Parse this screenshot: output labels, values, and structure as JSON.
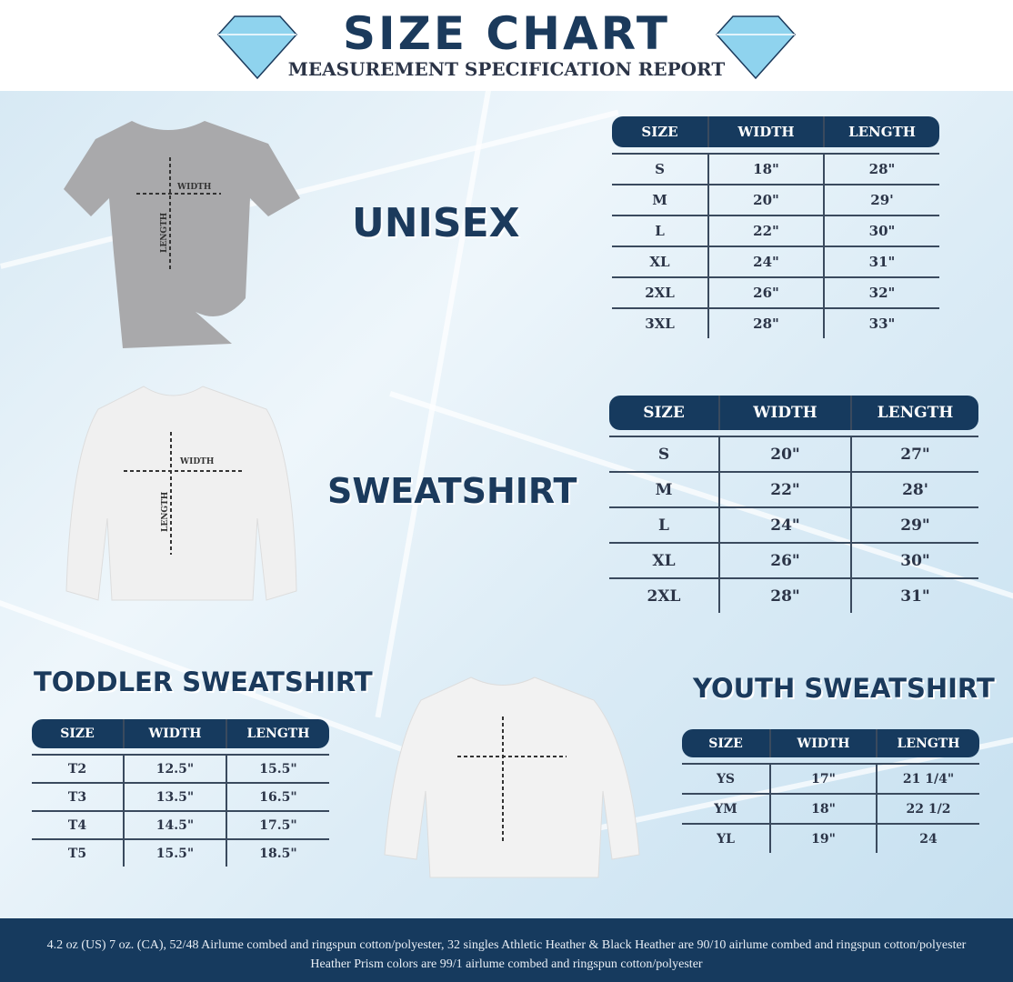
{
  "header": {
    "title": "SIZE CHART",
    "subtitle": "MEASUREMENT SPECIFICATION REPORT"
  },
  "colors": {
    "navy": "#163a5e",
    "diamond": "#8fd3ee",
    "background": "#dcecf6"
  },
  "icons": {
    "left": "diamond-icon",
    "right": "diamond-icon"
  },
  "shirt_labels": {
    "width": "WIDTH",
    "length": "LENGTH"
  },
  "sections": {
    "unisex": {
      "title": "UNISEX",
      "columns": [
        "SIZE",
        "WIDTH",
        "LENGTH"
      ],
      "rows": [
        [
          "S",
          "18\"",
          "28\""
        ],
        [
          "M",
          "20\"",
          "29'"
        ],
        [
          "L",
          "22\"",
          "30\""
        ],
        [
          "XL",
          "24\"",
          "31\""
        ],
        [
          "2XL",
          "26\"",
          "32\""
        ],
        [
          "3XL",
          "28\"",
          "33\""
        ]
      ]
    },
    "sweatshirt": {
      "title": "SWEATSHIRT",
      "columns": [
        "SIZE",
        "WIDTH",
        "LENGTH"
      ],
      "rows": [
        [
          "S",
          "20\"",
          "27\""
        ],
        [
          "M",
          "22\"",
          "28'"
        ],
        [
          "L",
          "24\"",
          "29\""
        ],
        [
          "XL",
          "26\"",
          "30\""
        ],
        [
          "2XL",
          "28\"",
          "31\""
        ]
      ]
    },
    "toddler": {
      "title": "TODDLER SWEATSHIRT",
      "columns": [
        "SIZE",
        "WIDTH",
        "LENGTH"
      ],
      "rows": [
        [
          "T2",
          "12.5\"",
          "15.5\""
        ],
        [
          "T3",
          "13.5\"",
          "16.5\""
        ],
        [
          "T4",
          "14.5\"",
          "17.5\""
        ],
        [
          "T5",
          "15.5\"",
          "18.5\""
        ]
      ]
    },
    "youth": {
      "title": "YOUTH SWEATSHIRT",
      "columns": [
        "SIZE",
        "WIDTH",
        "LENGTH"
      ],
      "rows": [
        [
          "YS",
          "17\"",
          "21 1/4\""
        ],
        [
          "YM",
          "18\"",
          "22 1/2"
        ],
        [
          "YL",
          "19\"",
          "24"
        ]
      ]
    }
  },
  "footer": {
    "text": "4.2 oz (US) 7 oz. (CA), 52/48 Airlume combed and ringspun cotton/polyester, 32 singles Athletic Heather & Black Heather are 90/10 airlume combed and ringspun cotton/polyester Heather Prism colors are 99/1 airlume combed and ringspun cotton/polyester"
  }
}
